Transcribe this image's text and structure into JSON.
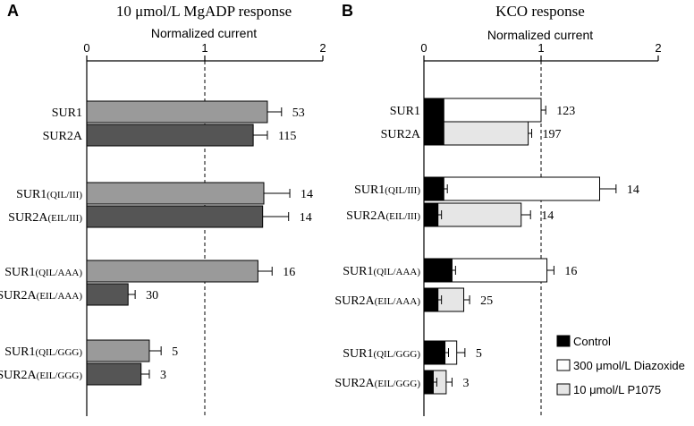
{
  "chart_data": [
    {
      "panel_letter": "A",
      "title": "10 μmol/L MgADP response",
      "xlabel": "Normalized current",
      "type": "bar",
      "orientation": "horizontal",
      "xlim": [
        0,
        2
      ],
      "ticks": [
        "0",
        "1",
        "2"
      ],
      "reference_line": 1,
      "categories": [
        {
          "label": "SUR1",
          "suffix": "",
          "values": [
            {
              "series": "MgADP",
              "value": 1.53,
              "error": 0.12
            }
          ],
          "n": "53"
        },
        {
          "label": "SUR2A",
          "suffix": "",
          "values": [
            {
              "series": "MgADP",
              "value": 1.41,
              "error": 0.12
            }
          ],
          "n": "115"
        },
        {
          "label": "SUR1",
          "suffix": "(QIL/III)",
          "values": [
            {
              "series": "MgADP",
              "value": 1.5,
              "error": 0.22
            }
          ],
          "n": "14"
        },
        {
          "label": "SUR2A",
          "suffix": "(EIL/III)",
          "values": [
            {
              "series": "MgADP",
              "value": 1.49,
              "error": 0.22
            }
          ],
          "n": "14"
        },
        {
          "label": "SUR1",
          "suffix": "(QIL/AAA)",
          "values": [
            {
              "series": "MgADP",
              "value": 1.45,
              "error": 0.12
            }
          ],
          "n": "16"
        },
        {
          "label": "SUR2A",
          "suffix": "(EIL/AAA)",
          "values": [
            {
              "series": "MgADP",
              "value": 0.35,
              "error": 0.06
            }
          ],
          "n": "30"
        },
        {
          "label": "SUR1",
          "suffix": "(QIL/GGG)",
          "values": [
            {
              "series": "MgADP",
              "value": 0.53,
              "error": 0.1
            }
          ],
          "n": "5"
        },
        {
          "label": "SUR2A",
          "suffix": "(EIL/GGG)",
          "values": [
            {
              "series": "MgADP",
              "value": 0.46,
              "error": 0.07
            }
          ],
          "n": "3"
        }
      ]
    },
    {
      "panel_letter": "B",
      "title": "KCO response",
      "xlabel": "Normalized current",
      "type": "bar",
      "orientation": "horizontal",
      "xlim": [
        0,
        2
      ],
      "ticks": [
        "0",
        "1",
        "2"
      ],
      "reference_line": 1,
      "legend_position": "bottom-right",
      "series": [
        {
          "name": "Control",
          "color": "#000000"
        },
        {
          "name": "300 μmol/L Diazoxide",
          "color": "#ffffff"
        },
        {
          "name": "10 μmol/L P1075",
          "color": "#e6e6e6"
        }
      ],
      "categories": [
        {
          "label": "SUR1",
          "suffix": "",
          "values": [
            {
              "series": "Control",
              "value": 0.17,
              "error": 0.0
            },
            {
              "series": "300 μmol/L Diazoxide",
              "value": 1.0,
              "error": 0.04
            }
          ],
          "n": "123"
        },
        {
          "label": "SUR2A",
          "suffix": "",
          "values": [
            {
              "series": "Control",
              "value": 0.17,
              "error": 0.0
            },
            {
              "series": "10 μmol/L P1075",
              "value": 0.89,
              "error": 0.03
            }
          ],
          "n": "197"
        },
        {
          "label": "SUR1",
          "suffix": "(QIL/III)",
          "values": [
            {
              "series": "Control",
              "value": 0.17,
              "error": 0.03
            },
            {
              "series": "300 μmol/L Diazoxide",
              "value": 1.5,
              "error": 0.14
            }
          ],
          "n": "14"
        },
        {
          "label": "SUR2A",
          "suffix": "(EIL/III)",
          "values": [
            {
              "series": "Control",
              "value": 0.12,
              "error": 0.03
            },
            {
              "series": "10 μmol/L P1075",
              "value": 0.83,
              "error": 0.08
            }
          ],
          "n": "14"
        },
        {
          "label": "SUR1",
          "suffix": "(QIL/AAA)",
          "values": [
            {
              "series": "Control",
              "value": 0.24,
              "error": 0.03
            },
            {
              "series": "300 μmol/L Diazoxide",
              "value": 1.05,
              "error": 0.06
            }
          ],
          "n": "16"
        },
        {
          "label": "SUR2A",
          "suffix": "(EIL/AAA)",
          "values": [
            {
              "series": "Control",
              "value": 0.12,
              "error": 0.03
            },
            {
              "series": "10 μmol/L P1075",
              "value": 0.34,
              "error": 0.05
            }
          ],
          "n": "25"
        },
        {
          "label": "SUR1",
          "suffix": "(QIL/GGG)",
          "values": [
            {
              "series": "Control",
              "value": 0.18,
              "error": 0.03
            },
            {
              "series": "300 μmol/L Diazoxide",
              "value": 0.28,
              "error": 0.07
            }
          ],
          "n": "5"
        },
        {
          "label": "SUR2A",
          "suffix": "(EIL/GGG)",
          "values": [
            {
              "series": "Control",
              "value": 0.08,
              "error": 0.03
            },
            {
              "series": "10 μmol/L P1075",
              "value": 0.19,
              "error": 0.05
            }
          ],
          "n": "3"
        }
      ]
    }
  ],
  "colors": {
    "panel_a_bar_odd": "#9a9a9a",
    "panel_a_bar_even": "#555555"
  }
}
